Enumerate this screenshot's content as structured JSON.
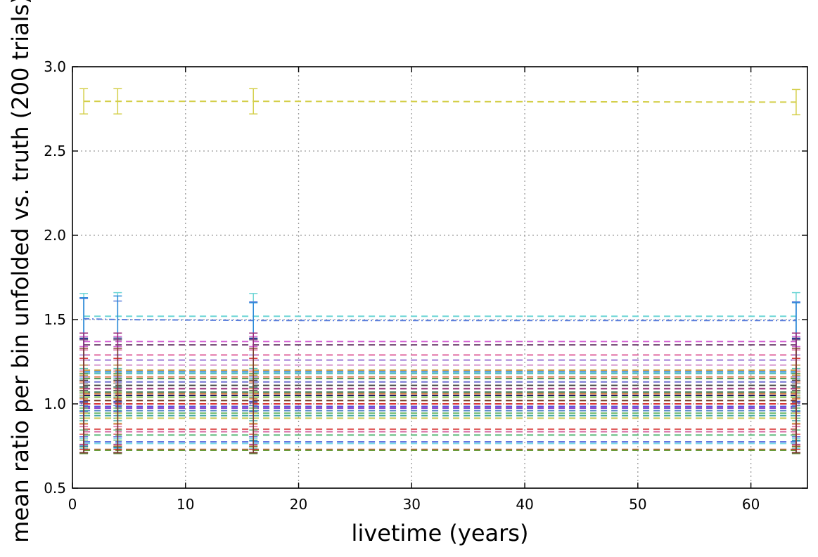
{
  "chart_data": {
    "type": "line",
    "title": "",
    "xlabel": "livetime (years)",
    "ylabel": "mean ratio per bin unfolded vs. truth (200 trials)",
    "xlim": [
      0,
      65
    ],
    "ylim": [
      0.5,
      3.0
    ],
    "grid": true,
    "legend": "none",
    "x_ticks": [
      0,
      10,
      20,
      30,
      40,
      50,
      60
    ],
    "y_ticks": [
      0.5,
      1.0,
      1.5,
      2.0,
      2.5,
      3.0
    ],
    "x_tick_labels": [
      "0",
      "10",
      "20",
      "30",
      "40",
      "50",
      "60"
    ],
    "y_tick_labels": [
      "0.5",
      "1.0",
      "1.5",
      "2.0",
      "2.5",
      "3.0"
    ],
    "x": [
      1,
      4,
      16,
      64
    ],
    "series": [
      {
        "values": [
          2.795,
          2.795,
          2.795,
          2.79
        ],
        "errors": [
          0.075,
          0.075,
          0.075,
          0.075
        ],
        "color": "#d4cf4a",
        "style": "dashed"
      },
      {
        "values": [
          1.52,
          1.52,
          1.52,
          1.52
        ],
        "errors": [
          0.135,
          0.14,
          0.135,
          0.14
        ],
        "color": "#6ed6d6",
        "style": "dashed"
      },
      {
        "values": [
          1.505,
          1.5,
          1.495,
          1.495
        ],
        "errors": [
          0.12,
          0.11,
          0.11,
          0.11
        ],
        "color": "#5b7fdc",
        "style": "dashdot"
      },
      {
        "values": [
          1.37,
          1.37,
          1.37,
          1.37
        ],
        "errors": [
          0.03,
          0.03,
          0.03,
          0.03
        ],
        "color": "#d25ad2",
        "style": "dashed"
      },
      {
        "values": [
          1.35,
          1.35,
          1.35,
          1.35
        ],
        "errors": [
          0.03,
          0.03,
          0.03,
          0.03
        ],
        "color": "#7a4e7a",
        "style": "dashed"
      },
      {
        "values": [
          1.29,
          1.29,
          1.29,
          1.29
        ],
        "errors": [
          0.03,
          0.03,
          0.03,
          0.03
        ],
        "color": "#e06aa0",
        "style": "dashed"
      },
      {
        "values": [
          1.26,
          1.26,
          1.26,
          1.26
        ],
        "errors": [
          0.03,
          0.03,
          0.03,
          0.03
        ],
        "color": "#9e7ad6",
        "style": "dashed"
      },
      {
        "values": [
          1.23,
          1.23,
          1.23,
          1.23
        ],
        "errors": [
          0.03,
          0.03,
          0.03,
          0.03
        ],
        "color": "#d89ad0",
        "style": "dashed"
      },
      {
        "values": [
          1.2,
          1.2,
          1.2,
          1.2
        ],
        "errors": [
          0.03,
          0.03,
          0.03,
          0.03
        ],
        "color": "#c8a050",
        "style": "dashed"
      },
      {
        "values": [
          1.18,
          1.18,
          1.18,
          1.18
        ],
        "errors": [
          0.03,
          0.03,
          0.03,
          0.03
        ],
        "color": "#58c0b0",
        "style": "dashed"
      },
      {
        "values": [
          1.16,
          1.16,
          1.16,
          1.16
        ],
        "errors": [
          0.03,
          0.03,
          0.03,
          0.03
        ],
        "color": "#e07850",
        "style": "dashed"
      },
      {
        "values": [
          1.15,
          1.15,
          1.15,
          1.15
        ],
        "errors": [
          0.03,
          0.03,
          0.03,
          0.03
        ],
        "color": "#58a058",
        "style": "dashed"
      },
      {
        "values": [
          1.13,
          1.13,
          1.13,
          1.13
        ],
        "errors": [
          0.03,
          0.03,
          0.03,
          0.03
        ],
        "color": "#7070d0",
        "style": "dashed"
      },
      {
        "values": [
          1.11,
          1.11,
          1.11,
          1.11
        ],
        "errors": [
          0.03,
          0.03,
          0.03,
          0.03
        ],
        "color": "#404040",
        "style": "dashed"
      },
      {
        "values": [
          1.09,
          1.09,
          1.09,
          1.09
        ],
        "errors": [
          0.03,
          0.03,
          0.03,
          0.03
        ],
        "color": "#a0a0a0",
        "style": "dashed"
      },
      {
        "values": [
          1.07,
          1.07,
          1.07,
          1.07
        ],
        "errors": [
          0.03,
          0.03,
          0.03,
          0.03
        ],
        "color": "#3a7a5a",
        "style": "dashed"
      },
      {
        "values": [
          1.06,
          1.06,
          1.06,
          1.06
        ],
        "errors": [
          0.03,
          0.03,
          0.03,
          0.03
        ],
        "color": "#d87a3a",
        "style": "dashed"
      },
      {
        "values": [
          1.04,
          1.04,
          1.04,
          1.04
        ],
        "errors": [
          0.03,
          0.03,
          0.03,
          0.03
        ],
        "color": "#7ab84a",
        "style": "dashed"
      },
      {
        "values": [
          1.02,
          1.02,
          1.02,
          1.02
        ],
        "errors": [
          0.03,
          0.03,
          0.03,
          0.03
        ],
        "color": "#b0b060",
        "style": "dashed"
      },
      {
        "values": [
          0.985,
          0.985,
          0.985,
          0.985
        ],
        "errors": [
          0.03,
          0.03,
          0.03,
          0.03
        ],
        "color": "#4a4ad8",
        "style": "dashed"
      },
      {
        "values": [
          0.975,
          0.975,
          0.975,
          0.975
        ],
        "errors": [
          0.03,
          0.03,
          0.03,
          0.03
        ],
        "color": "#8a3ac8",
        "style": "dashed"
      },
      {
        "values": [
          0.96,
          0.96,
          0.96,
          0.96
        ],
        "errors": [
          0.03,
          0.03,
          0.03,
          0.03
        ],
        "color": "#5a8ac8",
        "style": "dashed"
      },
      {
        "values": [
          0.945,
          0.945,
          0.945,
          0.945
        ],
        "errors": [
          0.03,
          0.03,
          0.03,
          0.03
        ],
        "color": "#68b868",
        "style": "dashed"
      },
      {
        "values": [
          0.93,
          0.93,
          0.93,
          0.93
        ],
        "errors": [
          0.03,
          0.03,
          0.03,
          0.03
        ],
        "color": "#48a8a8",
        "style": "dashed"
      },
      {
        "values": [
          0.915,
          0.915,
          0.915,
          0.915
        ],
        "errors": [
          0.03,
          0.03,
          0.03,
          0.03
        ],
        "color": "#c8c850",
        "style": "dashed"
      },
      {
        "values": [
          0.85,
          0.85,
          0.85,
          0.85
        ],
        "errors": [
          0.03,
          0.03,
          0.03,
          0.03
        ],
        "color": "#e06060",
        "style": "dashed"
      },
      {
        "values": [
          0.835,
          0.835,
          0.835,
          0.835
        ],
        "errors": [
          0.03,
          0.03,
          0.03,
          0.03
        ],
        "color": "#d870a8",
        "style": "dashed"
      },
      {
        "values": [
          0.815,
          0.815,
          0.815,
          0.815
        ],
        "errors": [
          0.03,
          0.03,
          0.03,
          0.03
        ],
        "color": "#58b878",
        "style": "dashed"
      },
      {
        "values": [
          0.775,
          0.775,
          0.775,
          0.775
        ],
        "errors": [
          0.03,
          0.03,
          0.03,
          0.03
        ],
        "color": "#6878e0",
        "style": "dashed"
      },
      {
        "values": [
          0.765,
          0.765,
          0.765,
          0.765
        ],
        "errors": [
          0.03,
          0.03,
          0.03,
          0.03
        ],
        "color": "#78d8e8",
        "style": "dashed"
      },
      {
        "values": [
          0.73,
          0.73,
          0.73,
          0.73
        ],
        "errors": [
          0.02,
          0.02,
          0.02,
          0.02
        ],
        "color": "#c85a3a",
        "style": "dashed"
      },
      {
        "values": [
          0.725,
          0.725,
          0.725,
          0.725
        ],
        "errors": [
          0.02,
          0.02,
          0.02,
          0.02
        ],
        "color": "#6a9a3a",
        "style": "dashed"
      },
      {
        "values": [
          1.19,
          1.19,
          1.19,
          1.19
        ],
        "errors": [
          0.44,
          0.45,
          0.41,
          0.41
        ],
        "color": "#2a8ad8",
        "style": "dashed"
      },
      {
        "values": [
          1.05,
          1.05,
          1.05,
          1.05
        ],
        "errors": [
          0.34,
          0.34,
          0.34,
          0.34
        ],
        "color": "#1a1a6a",
        "style": "dashed"
      },
      {
        "values": [
          1.09,
          1.09,
          1.09,
          1.09
        ],
        "errors": [
          0.33,
          0.33,
          0.33,
          0.33
        ],
        "color": "#9a2a7a",
        "style": "dashed"
      },
      {
        "values": [
          1.0,
          1.0,
          1.0,
          1.0
        ],
        "errors": [
          0.27,
          0.27,
          0.27,
          0.27
        ],
        "color": "#d83030",
        "style": "dashed"
      },
      {
        "values": [
          1.02,
          1.02,
          1.02,
          1.02
        ],
        "errors": [
          0.31,
          0.31,
          0.31,
          0.31
        ],
        "color": "#7a3a2a",
        "style": "dashed"
      }
    ]
  }
}
